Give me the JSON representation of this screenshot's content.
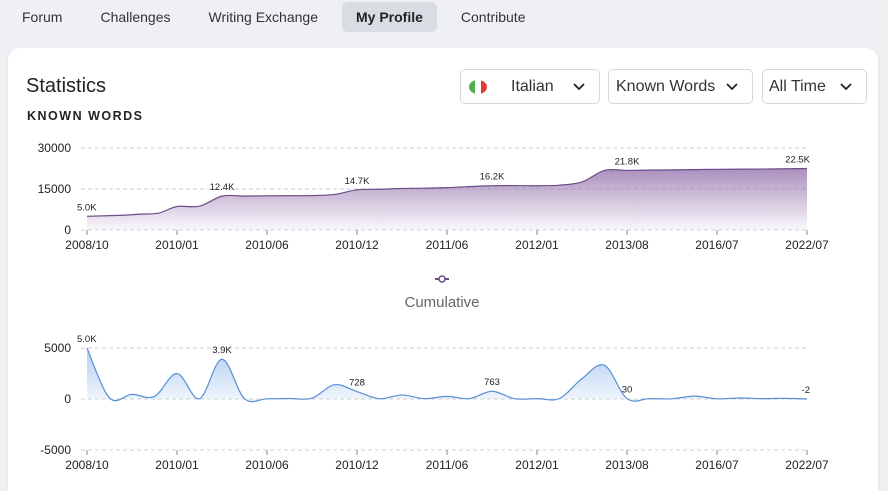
{
  "nav": {
    "items": [
      {
        "label": "Forum",
        "active": false
      },
      {
        "label": "Challenges",
        "active": false
      },
      {
        "label": "Writing Exchange",
        "active": false
      },
      {
        "label": "My Profile",
        "active": true
      },
      {
        "label": "Contribute",
        "active": false
      }
    ]
  },
  "card": {
    "title": "Statistics",
    "section_label": "KNOWN WORDS"
  },
  "filters": {
    "language": "Italian",
    "language_flag_colors": [
      "#4caf50",
      "#ffffff",
      "#e53935"
    ],
    "metric": "Known Words",
    "range": "All Time"
  },
  "colors": {
    "cumulative_line": "#6b4c8a",
    "cumulative_fill": "#8e6aa8",
    "daily_line": "#5a8fd6",
    "daily_fill": "#a9c8f0",
    "grid": "#cfcfcf"
  },
  "chart_data": [
    {
      "type": "area",
      "ylabel": "",
      "ylim": [
        0,
        30000
      ],
      "yticks": [
        "30000",
        "15000",
        "0"
      ],
      "x_ticks": [
        "2008/10",
        "2010/01",
        "2010/06",
        "2010/12",
        "2011/06",
        "2012/01",
        "2013/08",
        "2016/07",
        "2022/07"
      ],
      "grid": true,
      "legend": {
        "label": "Cumulative",
        "placement": "bottom-center"
      },
      "x": [
        0,
        0.4,
        0.6,
        0.8,
        1.0,
        1.25,
        1.5,
        1.75,
        2.0,
        2.5,
        2.75,
        3.0,
        3.25,
        3.5,
        3.75,
        4.0,
        4.5,
        5.0,
        5.25,
        5.5,
        5.75,
        6.0,
        6.25,
        6.5,
        6.75,
        7.0,
        7.5,
        8.0
      ],
      "values": [
        5000,
        5400,
        5800,
        6200,
        8600,
        8700,
        12400,
        12400,
        12500,
        12600,
        13000,
        14700,
        14900,
        15200,
        15300,
        15500,
        16200,
        16200,
        16400,
        17600,
        21800,
        21800,
        21900,
        22000,
        22100,
        22200,
        22300,
        22500
      ],
      "data_labels": [
        {
          "x": 0,
          "text": "5.0K"
        },
        {
          "x": 1.5,
          "text": "12.4K"
        },
        {
          "x": 3.0,
          "text": "14.7K"
        },
        {
          "x": 4.5,
          "text": "16.2K"
        },
        {
          "x": 6.0,
          "text": "21.8K"
        },
        {
          "x": 8.0,
          "text": "22.5K"
        }
      ]
    },
    {
      "type": "area",
      "ylabel": "",
      "ylim": [
        -5000,
        5000
      ],
      "yticks": [
        "5000",
        "0",
        "-5000"
      ],
      "x_ticks": [
        "2008/10",
        "2010/01",
        "2010/06",
        "2010/12",
        "2011/06",
        "2012/01",
        "2013/08",
        "2016/07",
        "2022/07"
      ],
      "grid": true,
      "x": [
        0,
        0.25,
        0.5,
        0.75,
        1.0,
        1.25,
        1.5,
        1.75,
        2.0,
        2.25,
        2.5,
        2.75,
        3.0,
        3.25,
        3.5,
        3.75,
        4.0,
        4.25,
        4.5,
        4.75,
        5.0,
        5.25,
        5.5,
        5.75,
        6.0,
        6.25,
        6.5,
        6.75,
        7.0,
        7.25,
        7.5,
        7.75,
        8.0
      ],
      "values": [
        5000,
        100,
        450,
        250,
        2500,
        30,
        3900,
        30,
        20,
        50,
        80,
        1400,
        728,
        30,
        400,
        30,
        260,
        40,
        763,
        30,
        40,
        50,
        2000,
        3300,
        30,
        40,
        20,
        280,
        20,
        100,
        40,
        60,
        -2
      ],
      "data_labels": [
        {
          "x": 0,
          "text": "5.0K"
        },
        {
          "x": 1.5,
          "text": "3.9K"
        },
        {
          "x": 3.0,
          "text": "728"
        },
        {
          "x": 4.5,
          "text": "763"
        },
        {
          "x": 6.0,
          "text": "30"
        },
        {
          "x": 8.0,
          "text": "-2"
        }
      ]
    }
  ]
}
